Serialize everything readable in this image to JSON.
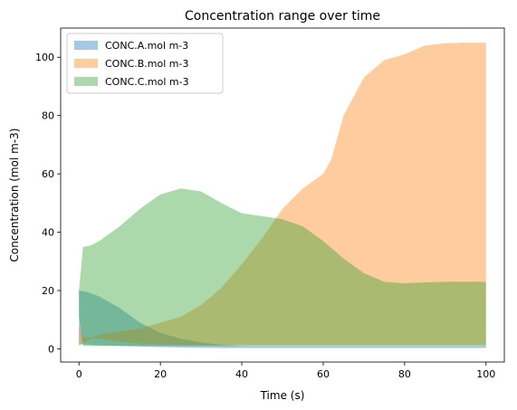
{
  "chart_data": {
    "type": "area",
    "title": "Concentration range over time",
    "xlabel": "Time (s)",
    "ylabel": "Concentration (mol m-3)",
    "xlim": [
      -4.5,
      104.5
    ],
    "ylim": [
      -4.5,
      110
    ],
    "xticks": [
      0,
      20,
      40,
      60,
      80,
      100
    ],
    "yticks": [
      0,
      20,
      40,
      60,
      80,
      100
    ],
    "grid": false,
    "legend_position": "top-left",
    "series": [
      {
        "name": "CONC.A.mol m-3",
        "color": "#1f77b4",
        "opacity": 0.4,
        "x": [
          0,
          2,
          5,
          10,
          15,
          20,
          25,
          30,
          35,
          40,
          45,
          50,
          60,
          70,
          80,
          90,
          100
        ],
        "lower": [
          1.5,
          1.5,
          1.2,
          1.0,
          0.8,
          0.6,
          0.5,
          0.4,
          0.3,
          0.3,
          0.3,
          0.3,
          0.3,
          0.3,
          0.3,
          0.3,
          0.3
        ],
        "upper": [
          20,
          19.5,
          18,
          14,
          9,
          5.5,
          3.5,
          2.2,
          1.4,
          1.0,
          1.0,
          1.0,
          1.0,
          1.0,
          1.0,
          1.0,
          1.0
        ]
      },
      {
        "name": "CONC.B.mol m-3",
        "color": "#ff7f0e",
        "opacity": 0.4,
        "x": [
          0,
          1,
          3,
          5,
          10,
          15,
          20,
          25,
          30,
          35,
          40,
          45,
          50,
          55,
          60,
          62,
          65,
          70,
          75,
          80,
          85,
          90,
          95,
          100
        ],
        "lower": [
          1.0,
          2.0,
          3.5,
          3.5,
          2.5,
          1.8,
          1.5,
          1.4,
          1.3,
          1.3,
          1.3,
          1.3,
          1.3,
          1.3,
          1.3,
          1.3,
          1.3,
          1.3,
          1.3,
          1.3,
          1.3,
          1.3,
          1.3,
          1.3
        ],
        "upper": [
          8,
          4,
          4,
          5,
          6,
          7,
          9,
          11,
          15,
          21,
          29,
          38,
          48,
          55,
          60,
          65,
          80,
          93,
          99,
          101,
          104,
          104.8,
          105,
          105
        ]
      },
      {
        "name": "CONC.C.mol m-3",
        "color": "#2ca02c",
        "opacity": 0.4,
        "x": [
          0,
          1,
          3,
          5,
          10,
          15,
          20,
          25,
          30,
          35,
          40,
          45,
          50,
          55,
          60,
          65,
          70,
          75,
          80,
          85,
          90,
          95,
          100
        ],
        "lower": [
          11,
          1.0,
          1.0,
          1.0,
          1.0,
          1.0,
          1.0,
          1.0,
          1.0,
          1.0,
          1.0,
          1.0,
          1.0,
          1.0,
          1.0,
          1.0,
          1.0,
          1.0,
          1.0,
          1.0,
          1.0,
          1.0,
          1.0
        ],
        "upper": [
          20,
          35,
          35.5,
          37,
          42,
          48,
          53,
          55,
          54,
          50,
          46.5,
          45.5,
          44.5,
          42,
          37,
          31,
          26,
          23,
          22.5,
          22.8,
          23,
          23,
          23
        ]
      }
    ]
  }
}
